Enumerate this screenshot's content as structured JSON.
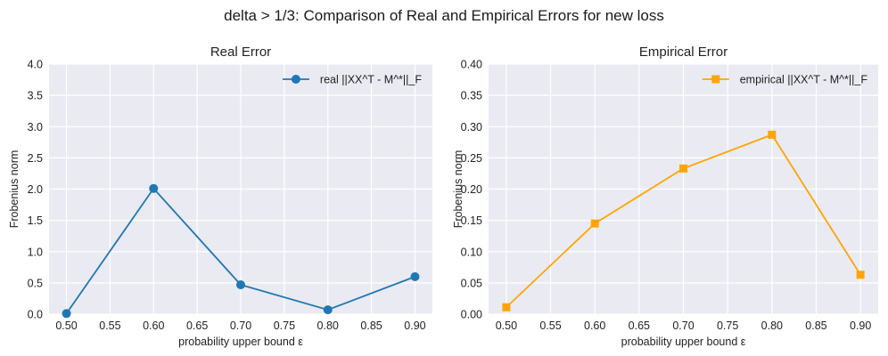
{
  "suptitle": "delta > 1/3: Comparison of Real and Empirical Errors for new loss",
  "chart_data": [
    {
      "type": "line",
      "title": "Real Error",
      "xlabel": "probability upper bound ε",
      "ylabel": "Frobenius norm",
      "x": [
        0.5,
        0.6,
        0.7,
        0.8,
        0.9
      ],
      "xlim": [
        0.48,
        0.92
      ],
      "ylim": [
        0,
        4.0
      ],
      "xticks": [
        "0.50",
        "0.55",
        "0.60",
        "0.65",
        "0.70",
        "0.75",
        "0.80",
        "0.85",
        "0.90"
      ],
      "yticks": [
        "0.0",
        "0.5",
        "1.0",
        "1.5",
        "2.0",
        "2.5",
        "3.0",
        "3.5",
        "4.0"
      ],
      "grid": true,
      "legend_position": "top-right",
      "series": [
        {
          "name": "real ||XX^T - M^*||_F",
          "values": [
            0.01,
            2.01,
            0.47,
            0.07,
            0.6
          ],
          "color": "#1f77b4",
          "marker": "circle"
        }
      ]
    },
    {
      "type": "line",
      "title": "Empirical Error",
      "xlabel": "probability upper bound ε",
      "ylabel": "Frobenius norm",
      "x": [
        0.5,
        0.6,
        0.7,
        0.8,
        0.9
      ],
      "xlim": [
        0.48,
        0.92
      ],
      "ylim": [
        0,
        0.4
      ],
      "xticks": [
        "0.50",
        "0.55",
        "0.60",
        "0.65",
        "0.70",
        "0.75",
        "0.80",
        "0.85",
        "0.90"
      ],
      "yticks": [
        "0.00",
        "0.05",
        "0.10",
        "0.15",
        "0.20",
        "0.25",
        "0.30",
        "0.35",
        "0.40"
      ],
      "grid": true,
      "legend_position": "top-right",
      "series": [
        {
          "name": "empirical ||XX^T - M^*||_F",
          "values": [
            0.011,
            0.145,
            0.233,
            0.287,
            0.063
          ],
          "color": "#ffa500",
          "marker": "square"
        }
      ]
    }
  ]
}
